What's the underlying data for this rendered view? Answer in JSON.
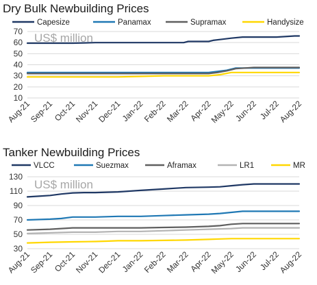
{
  "chart_data": [
    {
      "type": "line",
      "title": "Dry Bulk Newbuilding Prices",
      "annotation": "US$ million",
      "ylim": [
        10,
        70
      ],
      "yticks": [
        10,
        20,
        30,
        40,
        50,
        60,
        70
      ],
      "grid": true,
      "legend_position": "top",
      "categories": [
        "Aug-21",
        "Sep-21",
        "Oct-21",
        "Nov-21",
        "Dec-21",
        "Jan-22",
        "Feb-22",
        "Mar-22",
        "Apr-22",
        "May-22",
        "Jun-22",
        "Jul-22",
        "Aug-22"
      ],
      "series": [
        {
          "name": "Capesize",
          "color": "#1f3864",
          "x": [
            0,
            1,
            2,
            3,
            4,
            5,
            6,
            6.9,
            7.1,
            8,
            8.2,
            8.6,
            9,
            9.5,
            10,
            11,
            11.8,
            12
          ],
          "y": [
            59.5,
            59.5,
            59.5,
            60,
            60,
            60,
            60,
            60,
            61,
            61,
            62,
            63,
            64,
            65,
            65,
            65,
            66,
            66
          ]
        },
        {
          "name": "Panamax",
          "color": "#1f78b4",
          "x": [
            0,
            1,
            2,
            3,
            4,
            5,
            6,
            7,
            8,
            8.4,
            8.8,
            9.2,
            10,
            11,
            12
          ],
          "y": [
            33,
            33,
            33,
            33,
            33,
            33,
            33,
            33,
            33,
            34,
            35,
            37,
            37,
            37,
            37
          ]
        },
        {
          "name": "Supramax",
          "color": "#5f5f5f",
          "x": [
            0,
            1,
            2,
            3,
            4,
            5,
            6,
            7,
            8,
            8.4,
            8.8,
            9.2,
            10,
            11,
            12
          ],
          "y": [
            32,
            32,
            32,
            32,
            32,
            32,
            32,
            32,
            32,
            33,
            34.5,
            36.5,
            37.5,
            37.5,
            37.5
          ]
        },
        {
          "name": "Handysize",
          "color": "#ffd700",
          "x": [
            0,
            1,
            2,
            3,
            4,
            5,
            6,
            7,
            8,
            8.5,
            9,
            10,
            11,
            12
          ],
          "y": [
            29,
            29,
            29,
            29,
            29,
            29.5,
            30,
            30,
            30,
            31,
            33,
            33,
            33,
            33
          ]
        }
      ]
    },
    {
      "type": "line",
      "title": "Tanker Newbuilding Prices",
      "annotation": "US$ million",
      "ylim": [
        30,
        130
      ],
      "yticks": [
        30,
        50,
        70,
        90,
        110,
        130
      ],
      "grid": true,
      "legend_position": "top",
      "categories": [
        "Aug-21",
        "Sep-21",
        "Oct-21",
        "Nov-21",
        "Dec-21",
        "Jan-22",
        "Feb-22",
        "Mar-22",
        "Apr-22",
        "May-22",
        "Jun-22",
        "Jul-22",
        "Aug-22"
      ],
      "series": [
        {
          "name": "VLCC",
          "color": "#1f3864",
          "x": [
            0,
            0.5,
            1,
            1.5,
            2,
            2.5,
            3,
            4,
            5,
            5.5,
            6,
            6.5,
            7,
            8,
            8.5,
            9,
            9.5,
            10,
            11,
            12
          ],
          "y": [
            102,
            103,
            104,
            106,
            107.5,
            108,
            108,
            109,
            111,
            112,
            113,
            114,
            115,
            115.5,
            116,
            117.5,
            119,
            120,
            120,
            120
          ]
        },
        {
          "name": "Suezmax",
          "color": "#1f78b4",
          "x": [
            0,
            1,
            1.5,
            2,
            3,
            4,
            5,
            6,
            7,
            8,
            8.5,
            9,
            9.5,
            10,
            11,
            12
          ],
          "y": [
            70,
            71,
            72,
            74,
            74,
            75,
            75,
            76,
            77,
            78,
            79,
            80.5,
            82,
            82,
            82,
            82
          ]
        },
        {
          "name": "Aframax",
          "color": "#5f5f5f",
          "x": [
            0,
            1,
            2,
            3,
            4,
            5,
            6,
            7,
            8,
            8.5,
            9,
            9.5,
            10,
            11,
            12
          ],
          "y": [
            56,
            57,
            59,
            59,
            59,
            59,
            59.5,
            60,
            61,
            62,
            64,
            65,
            65,
            65,
            65
          ]
        },
        {
          "name": "LR1",
          "color": "#b3b3b3",
          "x": [
            0,
            1,
            2,
            3,
            4,
            5,
            6,
            7,
            8,
            8.5,
            9,
            9.5,
            10,
            11,
            12
          ],
          "y": [
            51,
            52,
            53,
            53,
            54,
            54,
            55,
            56,
            57,
            57.5,
            58,
            59,
            59,
            59,
            59
          ]
        },
        {
          "name": "MR",
          "color": "#ffd700",
          "x": [
            0,
            1,
            2,
            3,
            3.5,
            4,
            5,
            6,
            7,
            8,
            8.5,
            9,
            10,
            11,
            12
          ],
          "y": [
            38,
            39,
            39.5,
            40,
            40.5,
            41,
            41,
            41.5,
            42,
            43,
            43.5,
            44,
            44,
            44,
            44
          ]
        }
      ]
    }
  ]
}
